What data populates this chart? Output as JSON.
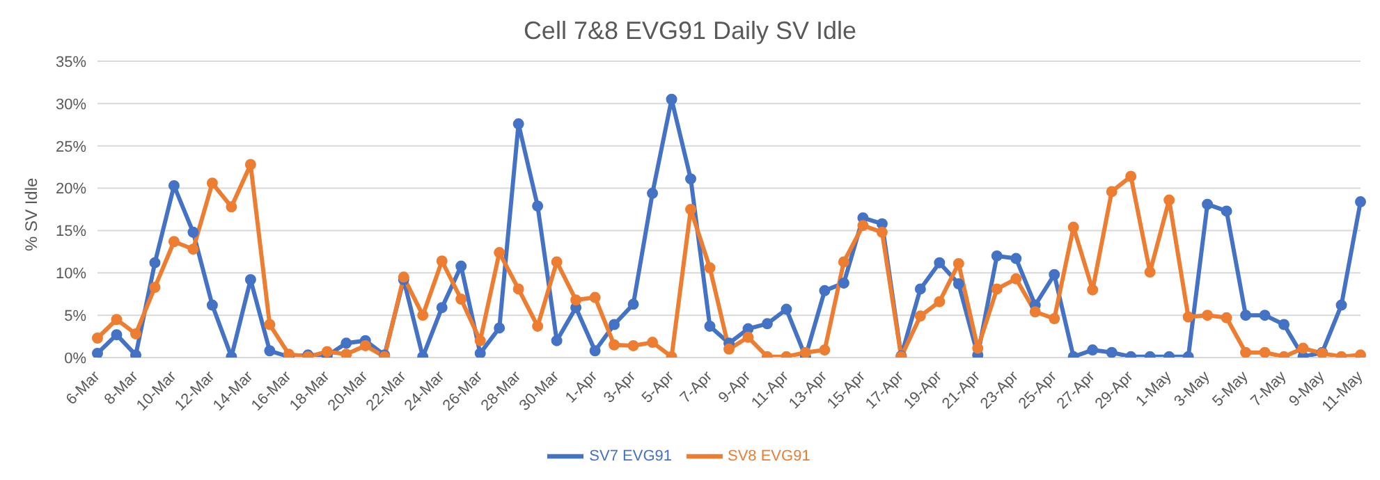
{
  "chart_data": {
    "type": "line",
    "title": "Cell 7&8 EVG91 Daily SV Idle",
    "ylabel": "% SV Idle",
    "categories": [
      "6-Mar",
      null,
      "8-Mar",
      null,
      "10-Mar",
      null,
      "12-Mar",
      null,
      "14-Mar",
      null,
      "16-Mar",
      null,
      "18-Mar",
      null,
      "20-Mar",
      null,
      "22-Mar",
      null,
      "24-Mar",
      null,
      "26-Mar",
      null,
      "28-Mar",
      null,
      "30-Mar",
      null,
      "1-Apr",
      null,
      "3-Apr",
      null,
      "5-Apr",
      null,
      "7-Apr",
      null,
      "9-Apr",
      null,
      "11-Apr",
      null,
      "13-Apr",
      null,
      "15-Apr",
      null,
      "17-Apr",
      null,
      "19-Apr",
      null,
      "21-Apr",
      null,
      "23-Apr",
      null,
      "25-Apr",
      null,
      "27-Apr",
      null,
      "29-Apr",
      null,
      "1-May",
      null,
      "3-May",
      null,
      "5-May",
      null,
      "7-May",
      null,
      "9-May",
      null,
      "11-May"
    ],
    "series": [
      {
        "name": "SV7 EVG91",
        "color": "#4472c4",
        "values": [
          0.5,
          2.7,
          0.3,
          11.2,
          20.3,
          14.8,
          6.2,
          0.1,
          9.2,
          0.8,
          0.1,
          0.3,
          0.2,
          1.7,
          2.0,
          0.3,
          9.2,
          0.1,
          5.9,
          10.8,
          0.5,
          3.5,
          27.6,
          17.9,
          2.0,
          5.9,
          0.8,
          3.9,
          6.3,
          19.4,
          30.5,
          21.1,
          3.7,
          1.7,
          3.4,
          4.0,
          5.7,
          0.1,
          7.9,
          8.8,
          16.5,
          15.8,
          0.2,
          8.1,
          11.2,
          8.7,
          0.3,
          12.0,
          11.7,
          6.2,
          9.8,
          0.1,
          0.9,
          0.6,
          0.1,
          0.1,
          0.1,
          0.1,
          18.1,
          17.3,
          5.0,
          5.0,
          3.9,
          0.1,
          0.6,
          6.2,
          18.4
        ]
      },
      {
        "name": "SV8 EVG91",
        "color": "#ed7d31",
        "values": [
          2.3,
          4.5,
          2.8,
          8.3,
          13.7,
          12.8,
          20.6,
          17.8,
          22.8,
          3.9,
          0.4,
          0.1,
          0.7,
          0.4,
          1.4,
          0.1,
          9.5,
          5.0,
          11.4,
          6.9,
          2.0,
          12.4,
          8.1,
          3.7,
          11.3,
          6.8,
          7.1,
          1.5,
          1.4,
          1.8,
          0.1,
          17.5,
          10.6,
          1.0,
          2.4,
          0.1,
          0.1,
          0.6,
          0.9,
          11.3,
          15.6,
          14.8,
          0.1,
          4.9,
          6.6,
          11.1,
          1.1,
          8.1,
          9.3,
          5.4,
          4.6,
          15.4,
          8.0,
          19.6,
          21.4,
          10.1,
          18.6,
          4.8,
          5.0,
          4.7,
          0.6,
          0.6,
          0.1,
          1.1,
          0.5,
          0.1,
          0.3
        ]
      }
    ],
    "ylim": [
      0,
      35
    ],
    "yticks": [
      {
        "value": 0,
        "label": "0%"
      },
      {
        "value": 5,
        "label": "5%"
      },
      {
        "value": 10,
        "label": "10%"
      },
      {
        "value": 15,
        "label": "15%"
      },
      {
        "value": 20,
        "label": "20%"
      },
      {
        "value": 25,
        "label": "25%"
      },
      {
        "value": 30,
        "label": "30%"
      },
      {
        "value": 35,
        "label": "35%"
      }
    ],
    "grid": "y",
    "legend": "bottom",
    "marker": "circle",
    "line_style": "solid"
  }
}
